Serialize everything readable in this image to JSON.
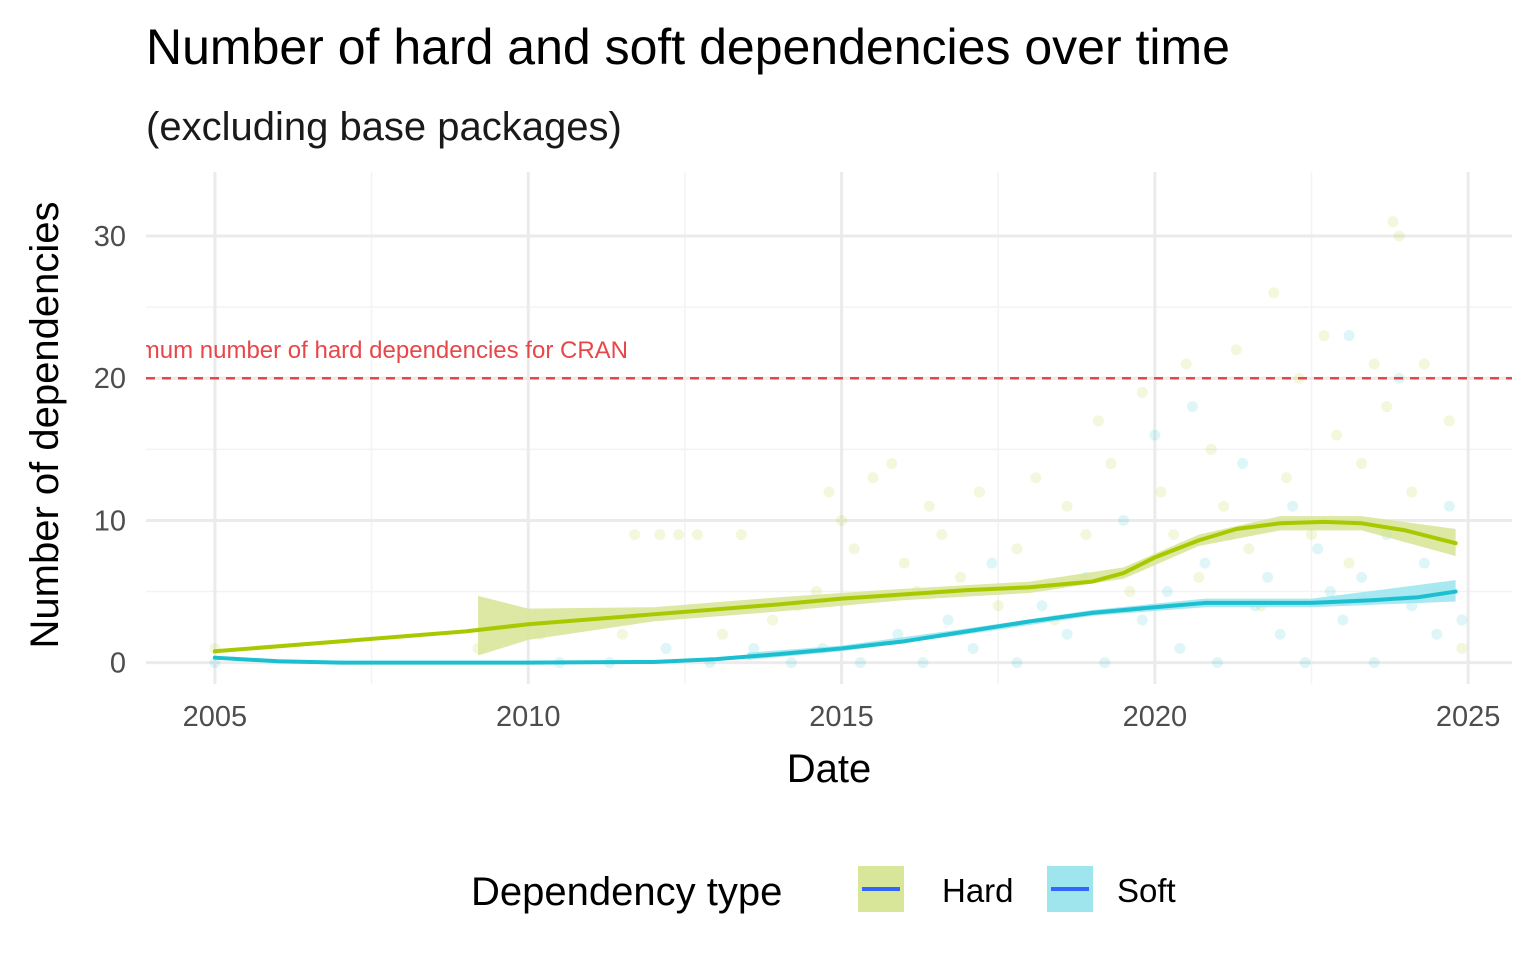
{
  "chart_data": {
    "type": "scatter",
    "title": "Number of hard and soft dependencies over time",
    "subtitle": "(excluding base packages)",
    "xlabel": "Date",
    "ylabel": "Number of dependencies",
    "xlim": [
      2003.9,
      2025.7
    ],
    "ylim": [
      -1.5,
      34.5
    ],
    "x_ticks": [
      2005,
      2010,
      2015,
      2020,
      2025
    ],
    "y_ticks": [
      0,
      10,
      20,
      30
    ],
    "grid": true,
    "legend": {
      "title": "Dependency type",
      "placement": "bottom",
      "entries": [
        "Hard",
        "Soft"
      ]
    },
    "reference_line": {
      "y": 20,
      "label": "Maximum number of hard dependencies for CRAN",
      "color": "#e8474a"
    },
    "series": [
      {
        "name": "Hard",
        "color": "#a8c800",
        "ribbon_color": "#d8e69a",
        "smooth": [
          [
            2005,
            0.8
          ],
          [
            2007,
            1.5
          ],
          [
            2009,
            2.2
          ],
          [
            2010,
            2.7
          ],
          [
            2012,
            3.4
          ],
          [
            2014,
            4.1
          ],
          [
            2015,
            4.5
          ],
          [
            2016,
            4.8
          ],
          [
            2017,
            5.1
          ],
          [
            2018,
            5.3
          ],
          [
            2019,
            5.7
          ],
          [
            2019.5,
            6.3
          ],
          [
            2020,
            7.4
          ],
          [
            2020.7,
            8.6
          ],
          [
            2021.3,
            9.4
          ],
          [
            2022,
            9.8
          ],
          [
            2022.7,
            9.9
          ],
          [
            2023.3,
            9.8
          ],
          [
            2024,
            9.3
          ],
          [
            2024.8,
            8.4
          ]
        ],
        "band": [
          [
            2009.2,
            0.5,
            4.7
          ],
          [
            2010,
            1.6,
            3.8
          ],
          [
            2012,
            2.9,
            3.9
          ],
          [
            2014,
            3.6,
            4.6
          ],
          [
            2016,
            4.4,
            5.2
          ],
          [
            2018,
            4.9,
            5.7
          ],
          [
            2019.5,
            5.9,
            6.7
          ],
          [
            2020.7,
            8.2,
            9.0
          ],
          [
            2022,
            9.3,
            10.3
          ],
          [
            2023.3,
            9.3,
            10.3
          ],
          [
            2024.8,
            7.5,
            9.4
          ]
        ],
        "points": [
          [
            2005,
            1
          ],
          [
            2009.2,
            1
          ],
          [
            2009.8,
            3
          ],
          [
            2010.2,
            2
          ],
          [
            2011.5,
            2
          ],
          [
            2011.7,
            9
          ],
          [
            2012.1,
            9
          ],
          [
            2012.4,
            9
          ],
          [
            2012.7,
            9
          ],
          [
            2013.1,
            2
          ],
          [
            2013.4,
            9
          ],
          [
            2013.9,
            3
          ],
          [
            2014.3,
            4
          ],
          [
            2014.6,
            5
          ],
          [
            2014.8,
            12
          ],
          [
            2015.0,
            10
          ],
          [
            2015.2,
            8
          ],
          [
            2015.5,
            13
          ],
          [
            2015.8,
            14
          ],
          [
            2016.0,
            7
          ],
          [
            2016.2,
            5
          ],
          [
            2016.4,
            11
          ],
          [
            2016.6,
            9
          ],
          [
            2016.9,
            6
          ],
          [
            2017.2,
            12
          ],
          [
            2017.5,
            4
          ],
          [
            2017.8,
            8
          ],
          [
            2018.1,
            13
          ],
          [
            2018.4,
            3
          ],
          [
            2018.6,
            11
          ],
          [
            2018.9,
            9
          ],
          [
            2019.1,
            17
          ],
          [
            2019.3,
            14
          ],
          [
            2019.6,
            5
          ],
          [
            2019.8,
            19
          ],
          [
            2020.1,
            12
          ],
          [
            2020.3,
            9
          ],
          [
            2020.5,
            21
          ],
          [
            2020.7,
            6
          ],
          [
            2020.9,
            15
          ],
          [
            2021.1,
            11
          ],
          [
            2021.3,
            22
          ],
          [
            2021.5,
            8
          ],
          [
            2021.7,
            4
          ],
          [
            2021.9,
            26
          ],
          [
            2022.1,
            13
          ],
          [
            2022.3,
            20
          ],
          [
            2022.5,
            9
          ],
          [
            2022.7,
            23
          ],
          [
            2022.9,
            16
          ],
          [
            2023.1,
            7
          ],
          [
            2023.3,
            14
          ],
          [
            2023.5,
            21
          ],
          [
            2023.7,
            18
          ],
          [
            2023.8,
            31
          ],
          [
            2023.9,
            30
          ],
          [
            2024.1,
            12
          ],
          [
            2024.3,
            21
          ],
          [
            2024.5,
            5
          ],
          [
            2024.7,
            17
          ],
          [
            2024.9,
            1
          ]
        ]
      },
      {
        "name": "Soft",
        "color": "#1bbfcf",
        "ribbon_color": "#9ee5ee",
        "smooth": [
          [
            2005,
            0.35
          ],
          [
            2006,
            0.1
          ],
          [
            2007,
            0.0
          ],
          [
            2008,
            0.0
          ],
          [
            2010,
            0.0
          ],
          [
            2012,
            0.05
          ],
          [
            2013,
            0.25
          ],
          [
            2014,
            0.6
          ],
          [
            2015,
            1.0
          ],
          [
            2016,
            1.5
          ],
          [
            2017,
            2.2
          ],
          [
            2018,
            2.9
          ],
          [
            2019,
            3.5
          ],
          [
            2020,
            3.9
          ],
          [
            2020.8,
            4.2
          ],
          [
            2021.5,
            4.2
          ],
          [
            2022.5,
            4.2
          ],
          [
            2023.5,
            4.4
          ],
          [
            2024.2,
            4.6
          ],
          [
            2024.8,
            5.0
          ]
        ],
        "band": [
          [
            2013.5,
            0.2,
            0.7
          ],
          [
            2015,
            0.8,
            1.2
          ],
          [
            2017,
            2.0,
            2.4
          ],
          [
            2019,
            3.3,
            3.7
          ],
          [
            2020.8,
            3.9,
            4.5
          ],
          [
            2022.5,
            3.9,
            4.5
          ],
          [
            2024.8,
            4.3,
            5.8
          ]
        ],
        "points": [
          [
            2005,
            0
          ],
          [
            2010.5,
            0
          ],
          [
            2011.3,
            0
          ],
          [
            2012.2,
            1
          ],
          [
            2012.9,
            0
          ],
          [
            2013.6,
            1
          ],
          [
            2014.2,
            0
          ],
          [
            2014.7,
            1
          ],
          [
            2015.3,
            0
          ],
          [
            2015.9,
            2
          ],
          [
            2016.3,
            0
          ],
          [
            2016.7,
            3
          ],
          [
            2017.1,
            1
          ],
          [
            2017.4,
            7
          ],
          [
            2017.8,
            0
          ],
          [
            2018.2,
            4
          ],
          [
            2018.6,
            2
          ],
          [
            2018.9,
            6
          ],
          [
            2019.2,
            0
          ],
          [
            2019.5,
            10
          ],
          [
            2019.8,
            3
          ],
          [
            2020.0,
            16
          ],
          [
            2020.2,
            5
          ],
          [
            2020.4,
            1
          ],
          [
            2020.6,
            18
          ],
          [
            2020.8,
            7
          ],
          [
            2021.0,
            0
          ],
          [
            2021.2,
            9
          ],
          [
            2021.4,
            14
          ],
          [
            2021.6,
            4
          ],
          [
            2021.8,
            6
          ],
          [
            2022.0,
            2
          ],
          [
            2022.2,
            11
          ],
          [
            2022.4,
            0
          ],
          [
            2022.6,
            8
          ],
          [
            2022.8,
            5
          ],
          [
            2023.0,
            3
          ],
          [
            2023.1,
            23
          ],
          [
            2023.3,
            6
          ],
          [
            2023.5,
            0
          ],
          [
            2023.7,
            9
          ],
          [
            2023.9,
            20
          ],
          [
            2024.1,
            4
          ],
          [
            2024.3,
            7
          ],
          [
            2024.5,
            2
          ],
          [
            2024.7,
            11
          ],
          [
            2024.9,
            3
          ]
        ]
      }
    ]
  }
}
